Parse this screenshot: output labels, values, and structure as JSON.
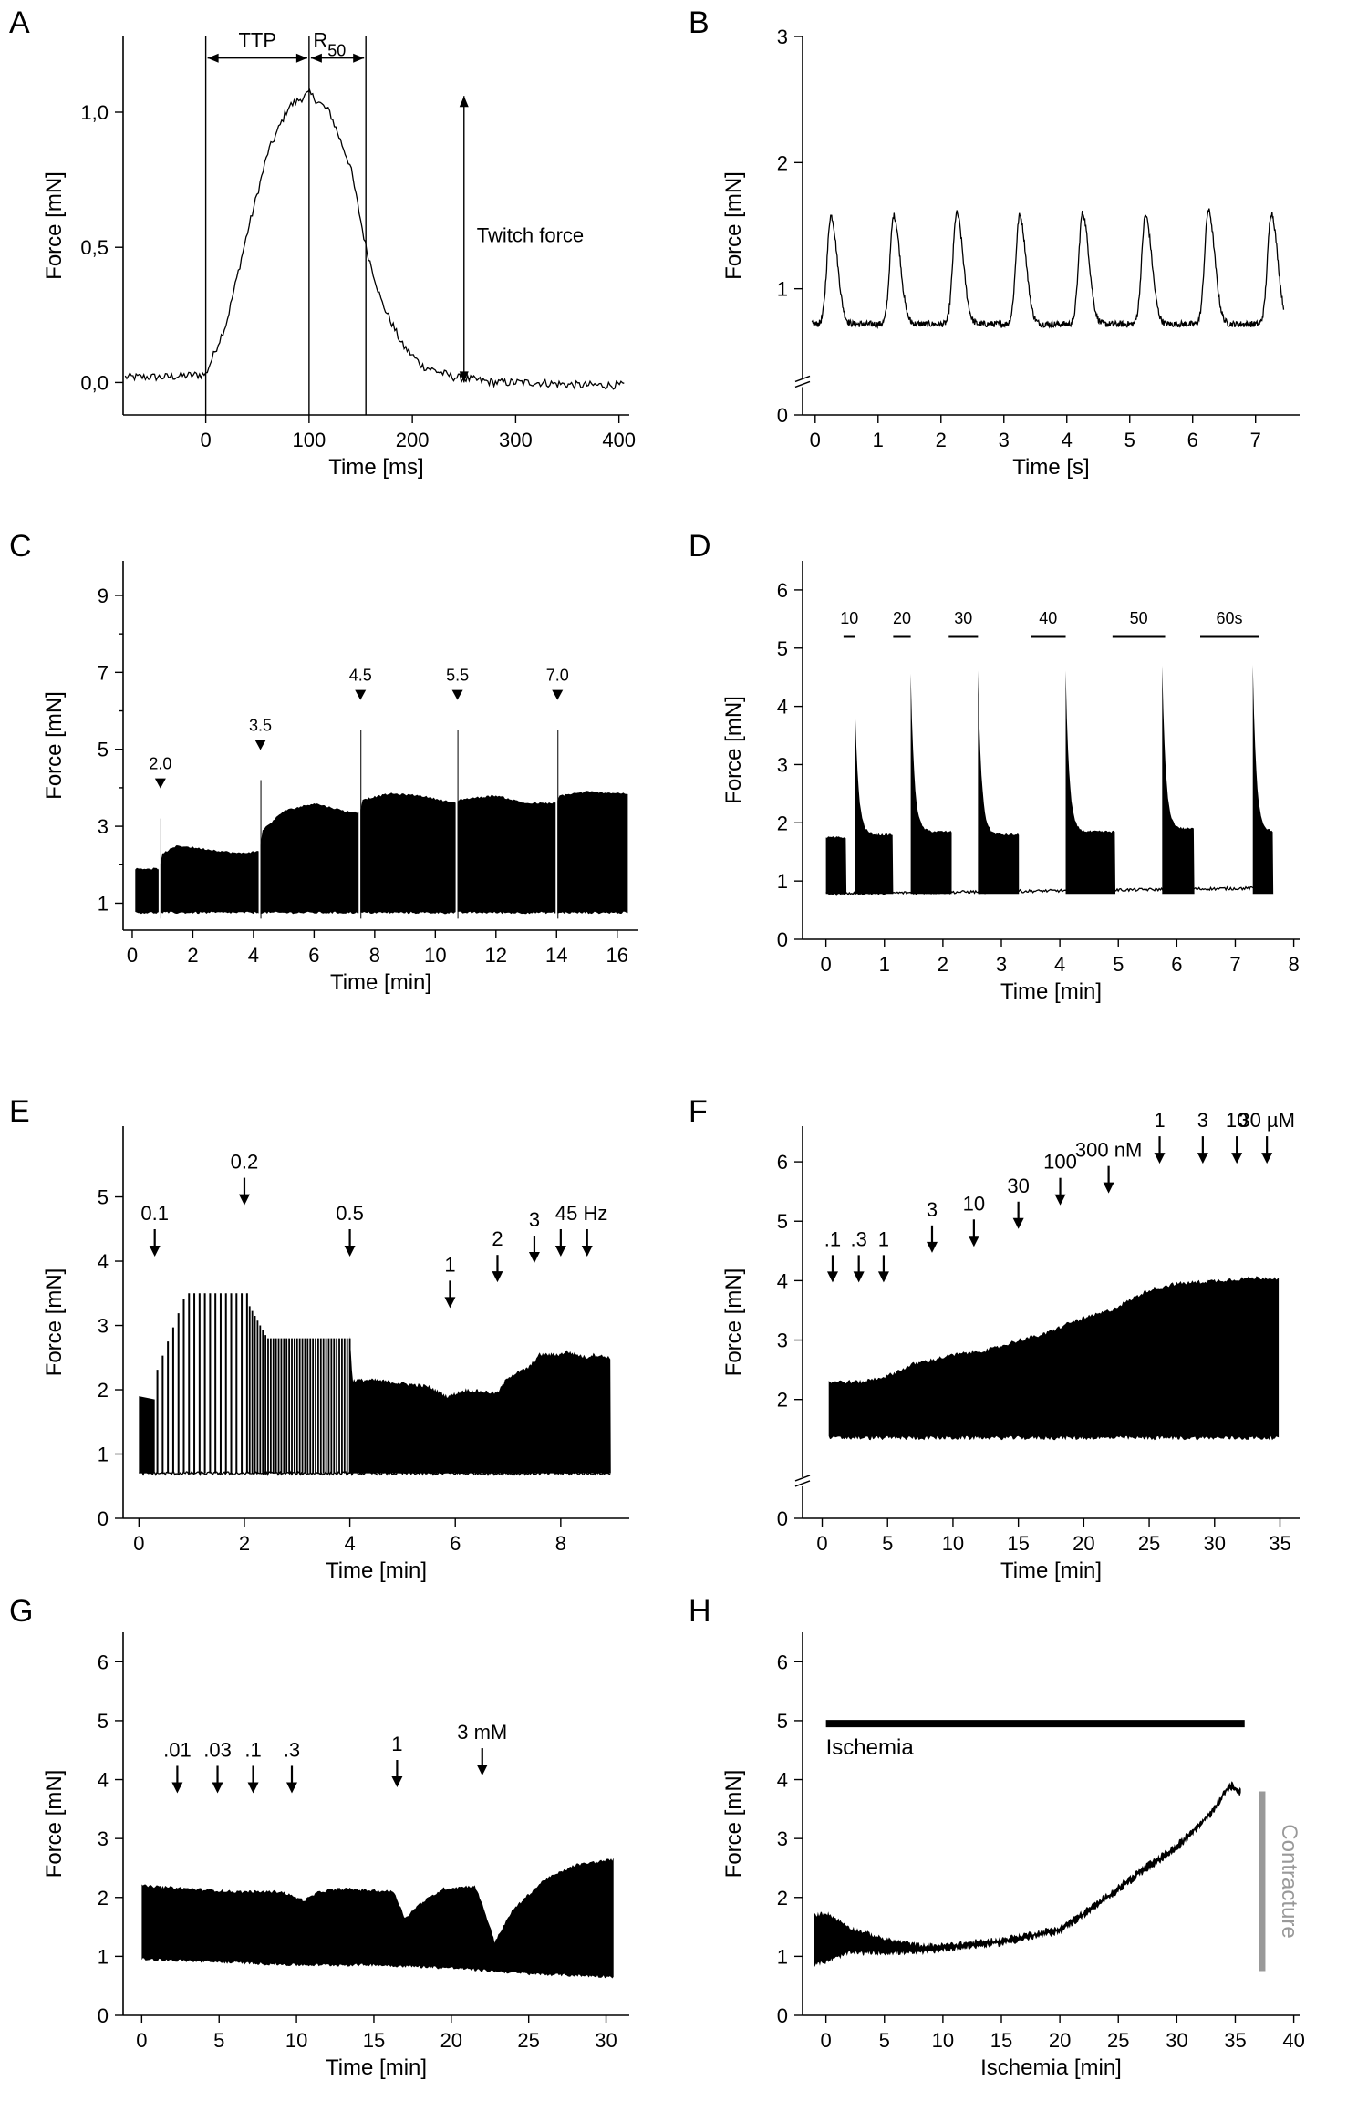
{
  "chart_data": [
    {
      "id": "A",
      "panel_label": "A",
      "type": "line",
      "xlabel": "Time [ms]",
      "ylabel": "Force [mN]",
      "xlim": [
        -80,
        410
      ],
      "ylim": [
        -0.12,
        1.28
      ],
      "x_ticks": [
        0,
        100,
        200,
        300,
        400
      ],
      "x_tick_labels": [
        "0",
        "100",
        "200",
        "300",
        "400"
      ],
      "y_ticks": [
        0.0,
        0.5,
        1.0
      ],
      "y_tick_labels": [
        "0,0",
        "0,5",
        "1,0"
      ],
      "annotations": {
        "ttp": "TTP",
        "r50": "R",
        "r50_sub": "50",
        "twitch": "Twitch force"
      },
      "markers_x": [
        0,
        100,
        155
      ],
      "series": [
        {
          "name": "twitch",
          "x": [
            -80,
            -40,
            0,
            20,
            40,
            60,
            80,
            100,
            120,
            140,
            155,
            170,
            190,
            210,
            240,
            280,
            320,
            360,
            400
          ],
          "y": [
            0.02,
            0.02,
            0.03,
            0.22,
            0.55,
            0.85,
            1.02,
            1.07,
            1.0,
            0.8,
            0.5,
            0.3,
            0.14,
            0.06,
            0.02,
            0.0,
            0.0,
            -0.01,
            -0.01
          ]
        }
      ]
    },
    {
      "id": "B",
      "panel_label": "B",
      "type": "line",
      "xlabel": "Time [s]",
      "ylabel": "Force [mN]",
      "xlim": [
        -0.2,
        7.7
      ],
      "ylim": [
        0,
        3
      ],
      "y_break": true,
      "x_ticks": [
        0,
        1,
        2,
        3,
        4,
        5,
        6,
        7
      ],
      "x_tick_labels": [
        "0",
        "1",
        "2",
        "3",
        "4",
        "5",
        "6",
        "7"
      ],
      "y_ticks": [
        0,
        1,
        2,
        3
      ],
      "y_tick_labels": [
        "0",
        "1",
        "2",
        "3"
      ],
      "baseline": 0.72,
      "peak_times": [
        0.25,
        1.25,
        2.25,
        3.25,
        4.25,
        5.25,
        6.25,
        7.25
      ],
      "peak_values": [
        1.58,
        1.58,
        1.6,
        1.58,
        1.6,
        1.58,
        1.62,
        1.6
      ],
      "x_end": 7.45
    },
    {
      "id": "C",
      "panel_label": "C",
      "type": "area",
      "xlabel": "Time [min]",
      "ylabel": "Force [mN]",
      "xlim": [
        -0.3,
        16.7
      ],
      "ylim": [
        0.3,
        9.9
      ],
      "x_ticks": [
        0,
        2,
        4,
        6,
        8,
        10,
        12,
        14,
        16
      ],
      "x_tick_labels": [
        "0",
        "2",
        "4",
        "6",
        "8",
        "10",
        "12",
        "14",
        "16"
      ],
      "y_ticks": [
        1,
        3,
        5,
        7,
        9
      ],
      "y_tick_labels": [
        "1",
        "3",
        "5",
        "7",
        "9"
      ],
      "y_minor_ticks": [
        2,
        4,
        6,
        8
      ],
      "markers": [
        {
          "x": 0.9,
          "label": "2.0",
          "y": 3.2
        },
        {
          "x": 4.2,
          "label": "3.5",
          "y": 4.2
        },
        {
          "x": 7.5,
          "label": "4.5",
          "y": 5.5
        },
        {
          "x": 10.7,
          "label": "5.5",
          "y": 5.5
        },
        {
          "x": 14.0,
          "label": "7.0",
          "y": 5.5
        }
      ],
      "top_envelope": {
        "x": [
          0.1,
          0.9,
          1.0,
          1.5,
          2.5,
          3.5,
          4.2,
          4.3,
          5.0,
          6.0,
          7.0,
          7.5,
          7.6,
          8.5,
          9.5,
          10.7,
          10.8,
          12.0,
          13.0,
          14.0,
          14.1,
          15.0,
          16.4
        ],
        "y": [
          1.9,
          1.9,
          2.3,
          2.5,
          2.4,
          2.3,
          2.35,
          2.9,
          3.4,
          3.6,
          3.4,
          3.35,
          3.7,
          3.85,
          3.8,
          3.6,
          3.7,
          3.8,
          3.6,
          3.6,
          3.8,
          3.9,
          3.85
        ]
      },
      "bottom": 0.75,
      "x_start": 0.1,
      "x_end": 16.4
    },
    {
      "id": "D",
      "panel_label": "D",
      "type": "area",
      "xlabel": "Time [min]",
      "ylabel": "Force [mN]",
      "xlim": [
        -0.4,
        8.1
      ],
      "ylim": [
        0,
        6.5
      ],
      "x_ticks": [
        0,
        1,
        2,
        3,
        4,
        5,
        6,
        7,
        8
      ],
      "x_tick_labels": [
        "0",
        "1",
        "2",
        "3",
        "4",
        "5",
        "6",
        "7",
        "8"
      ],
      "y_ticks": [
        0,
        1,
        2,
        3,
        4,
        5,
        6
      ],
      "y_tick_labels": [
        "0",
        "1",
        "2",
        "3",
        "4",
        "5",
        "6"
      ],
      "bars": [
        {
          "label": "10",
          "x0": 0.3,
          "x1": 0.5
        },
        {
          "label": "20",
          "x0": 1.15,
          "x1": 1.45
        },
        {
          "label": "30",
          "x0": 2.1,
          "x1": 2.6
        },
        {
          "label": "40",
          "x0": 3.5,
          "x1": 4.1
        },
        {
          "label": "50",
          "x0": 4.9,
          "x1": 5.8
        },
        {
          "label": "60s",
          "x0": 6.4,
          "x1": 7.4
        }
      ],
      "bar_y": 5.2,
      "blocks": [
        {
          "x0": 0.0,
          "x1": 0.35,
          "top": 1.75,
          "peak": null
        },
        {
          "x0": 0.5,
          "x1": 1.15,
          "top": 1.8,
          "peak": 3.9
        },
        {
          "x0": 1.45,
          "x1": 2.15,
          "top": 1.85,
          "peak": 4.55
        },
        {
          "x0": 2.6,
          "x1": 3.3,
          "top": 1.8,
          "peak": 4.6
        },
        {
          "x0": 4.1,
          "x1": 4.95,
          "top": 1.85,
          "peak": 4.6
        },
        {
          "x0": 5.75,
          "x1": 6.3,
          "top": 1.9,
          "peak": 4.7
        },
        {
          "x0": 7.3,
          "x1": 7.65,
          "top": 1.85,
          "peak": 4.7
        }
      ],
      "baseline": 0.78
    },
    {
      "id": "E",
      "panel_label": "E",
      "type": "area",
      "xlabel": "Time [min]",
      "ylabel": "Force [mN]",
      "xlim": [
        -0.3,
        9.3
      ],
      "ylim": [
        0,
        6.1
      ],
      "x_ticks": [
        0,
        2,
        4,
        6,
        8
      ],
      "x_tick_labels": [
        "0",
        "2",
        "4",
        "6",
        "8"
      ],
      "y_ticks": [
        0,
        1,
        2,
        3,
        4,
        5
      ],
      "y_tick_labels": [
        "0",
        "1",
        "2",
        "3",
        "4",
        "5"
      ],
      "arrows": [
        {
          "x": 0.3,
          "label": "0.1",
          "y": 4.1
        },
        {
          "x": 2.0,
          "label": "0.2",
          "y": 4.9
        },
        {
          "x": 4.0,
          "label": "0.5",
          "y": 4.1
        },
        {
          "x": 5.9,
          "label": "1",
          "y": 3.3
        },
        {
          "x": 6.8,
          "label": "2",
          "y": 3.7
        },
        {
          "x": 7.5,
          "label": "3",
          "y": 4.0
        },
        {
          "x": 8.0,
          "label": "4",
          "y": 4.1
        },
        {
          "x": 8.5,
          "label": "5 Hz",
          "y": 4.1
        }
      ],
      "baseline": 0.7
    },
    {
      "id": "F",
      "panel_label": "F",
      "type": "area",
      "xlabel": "Time [min]",
      "ylabel": "Force [mN]",
      "xlim": [
        -1.5,
        36.5
      ],
      "ylim": [
        0,
        6.6
      ],
      "y_break": true,
      "x_ticks": [
        0,
        5,
        10,
        15,
        20,
        25,
        30,
        35
      ],
      "x_tick_labels": [
        "0",
        "5",
        "10",
        "15",
        "20",
        "25",
        "30",
        "35"
      ],
      "y_ticks": [
        0,
        2,
        3,
        4,
        5,
        6
      ],
      "y_tick_labels": [
        "0",
        "2",
        "3",
        "4",
        "5",
        "6"
      ],
      "arrows": [
        {
          "x": 0.8,
          "label": ".1",
          "y": 4.0
        },
        {
          "x": 2.8,
          "label": ".3",
          "y": 4.0
        },
        {
          "x": 4.7,
          "label": "1",
          "y": 4.0
        },
        {
          "x": 8.4,
          "label": "3",
          "y": 4.5
        },
        {
          "x": 11.6,
          "label": "10",
          "y": 4.6
        },
        {
          "x": 15.0,
          "label": "30",
          "y": 4.9
        },
        {
          "x": 18.2,
          "label": "100",
          "y": 5.3
        },
        {
          "x": 21.9,
          "label": "300 nM",
          "y": 5.5
        },
        {
          "x": 25.8,
          "label": "1",
          "y": 6.0
        },
        {
          "x": 29.1,
          "label": "3",
          "y": 6.0
        },
        {
          "x": 31.7,
          "label": "10",
          "y": 6.0
        },
        {
          "x": 34.0,
          "label": "30 µM",
          "y": 6.0
        }
      ],
      "top_envelope": {
        "x": [
          0.5,
          3,
          5,
          7,
          10,
          13,
          15,
          17,
          19,
          22,
          25,
          27,
          30,
          33,
          35
        ],
        "y": [
          2.3,
          2.3,
          2.4,
          2.6,
          2.75,
          2.85,
          3.0,
          3.1,
          3.3,
          3.5,
          3.85,
          3.95,
          4.0,
          4.05,
          4.05
        ]
      },
      "bottom": 1.35,
      "x_start": 0.5,
      "x_end": 35.0
    },
    {
      "id": "G",
      "panel_label": "G",
      "type": "area",
      "xlabel": "Time [min]",
      "ylabel": "Force [mN]",
      "xlim": [
        -1.2,
        31.5
      ],
      "ylim": [
        0,
        6.5
      ],
      "x_ticks": [
        0,
        5,
        10,
        15,
        20,
        25,
        30
      ],
      "x_tick_labels": [
        "0",
        "5",
        "10",
        "15",
        "20",
        "25",
        "30"
      ],
      "y_ticks": [
        0,
        1,
        2,
        3,
        4,
        5,
        6
      ],
      "y_tick_labels": [
        "0",
        "1",
        "2",
        "3",
        "4",
        "5",
        "6"
      ],
      "arrows": [
        {
          "x": 2.3,
          "label": ".01",
          "y": 3.8
        },
        {
          "x": 4.9,
          "label": ".03",
          "y": 3.8
        },
        {
          "x": 7.2,
          "label": ".1",
          "y": 3.8
        },
        {
          "x": 9.7,
          "label": ".3",
          "y": 3.8
        },
        {
          "x": 16.5,
          "label": "1",
          "y": 3.9
        },
        {
          "x": 22.0,
          "label": "3 mM",
          "y": 4.1
        }
      ],
      "top_envelope": {
        "x": [
          0,
          3,
          6,
          9,
          10.5,
          11.5,
          13,
          16.3,
          17,
          18,
          19.5,
          21.5,
          22.0,
          22.8,
          24,
          26,
          28,
          30.5
        ],
        "y": [
          2.2,
          2.15,
          2.1,
          2.1,
          1.95,
          2.1,
          2.15,
          2.1,
          1.65,
          1.9,
          2.15,
          2.2,
          1.9,
          1.25,
          1.8,
          2.3,
          2.55,
          2.65
        ]
      },
      "bottom_envelope": {
        "x": [
          0,
          5,
          10,
          15,
          20,
          25,
          30.5
        ],
        "y": [
          0.95,
          0.9,
          0.85,
          0.85,
          0.8,
          0.7,
          0.65
        ]
      },
      "x_start": 0,
      "x_end": 30.5
    },
    {
      "id": "H",
      "panel_label": "H",
      "type": "area",
      "xlabel": "Ischemia [min]",
      "ylabel": "Force [mN]",
      "xlim": [
        -2.0,
        40.5
      ],
      "ylim": [
        0,
        6.5
      ],
      "x_ticks": [
        0,
        5,
        10,
        15,
        20,
        25,
        30,
        35,
        40
      ],
      "x_tick_labels": [
        "0",
        "5",
        "10",
        "15",
        "20",
        "25",
        "30",
        "35",
        "40"
      ],
      "y_ticks": [
        0,
        1,
        2,
        3,
        4,
        5,
        6
      ],
      "y_tick_labels": [
        "0",
        "1",
        "2",
        "3",
        "4",
        "5",
        "6"
      ],
      "ischemia_bar": {
        "label": "Ischemia",
        "x0": 0,
        "x1": 35.8,
        "y": 4.95
      },
      "contracture": {
        "label": "Contracture",
        "x": 37.3,
        "y0": 0.75,
        "y1": 3.8,
        "color": "#999999"
      },
      "top_envelope": {
        "x": [
          -1,
          0,
          2,
          5,
          8,
          10,
          15,
          20,
          23,
          27,
          30,
          33,
          34.5,
          35.5
        ],
        "y": [
          1.7,
          1.75,
          1.5,
          1.3,
          1.2,
          1.2,
          1.3,
          1.5,
          1.9,
          2.5,
          2.9,
          3.5,
          3.95,
          3.85
        ]
      },
      "bottom_envelope": {
        "x": [
          -1,
          0,
          2,
          5,
          8,
          10,
          15,
          20,
          23,
          27,
          30,
          33,
          34.5,
          35.5
        ],
        "y": [
          0.85,
          0.9,
          1.05,
          1.05,
          1.05,
          1.1,
          1.2,
          1.4,
          1.8,
          2.4,
          2.8,
          3.4,
          3.85,
          3.75
        ]
      },
      "x_start": -1,
      "x_end": 35.5
    }
  ]
}
